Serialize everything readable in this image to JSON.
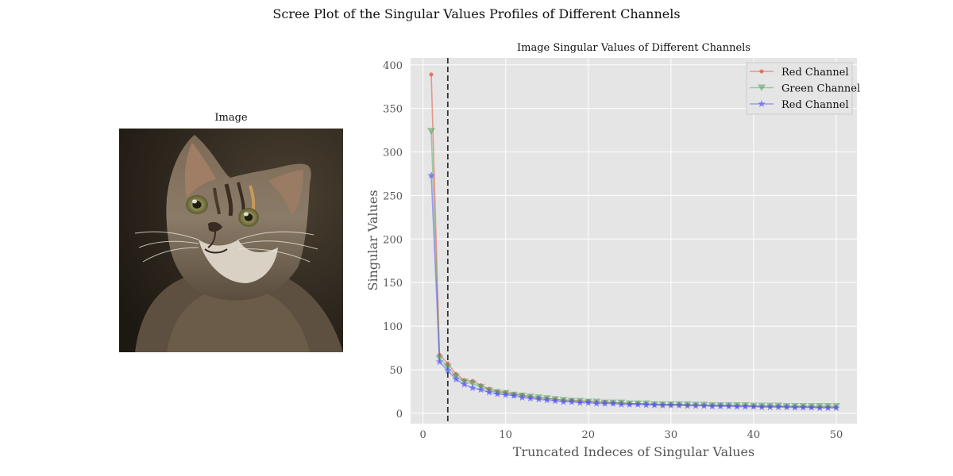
{
  "figure": {
    "title": "Scree Plot of the Singular Values Profiles of Different Channels"
  },
  "image_panel": {
    "title": "Image"
  },
  "chart_data": {
    "type": "line",
    "title": "Image Singular Values of Different Channels",
    "xlabel": "Truncated Indeces of Singular Values",
    "ylabel": "Singular Values",
    "xlim": [
      -1.5,
      52.5
    ],
    "ylim": [
      -12,
      408
    ],
    "xticks": [
      0,
      10,
      20,
      30,
      40,
      50
    ],
    "yticks": [
      0,
      50,
      100,
      150,
      200,
      250,
      300,
      350,
      400
    ],
    "grid": true,
    "legend_position": "top-right",
    "vline_x": 3,
    "x": [
      1,
      2,
      3,
      4,
      5,
      6,
      7,
      8,
      9,
      10,
      11,
      12,
      13,
      14,
      15,
      16,
      17,
      18,
      19,
      20,
      21,
      22,
      23,
      24,
      25,
      26,
      27,
      28,
      29,
      30,
      31,
      32,
      33,
      34,
      35,
      36,
      37,
      38,
      39,
      40,
      41,
      42,
      43,
      44,
      45,
      46,
      47,
      48,
      49,
      50
    ],
    "series": [
      {
        "name": "Red Channel",
        "color": "#e24a33",
        "marker": "dot",
        "values": [
          389,
          67,
          57,
          45,
          38,
          37,
          32,
          28,
          25,
          24,
          22,
          21,
          19,
          18,
          17,
          16,
          15,
          15,
          14,
          14,
          13,
          13,
          12,
          12,
          11,
          11,
          11,
          10,
          10,
          10,
          10,
          9.5,
          9.5,
          9,
          9,
          9,
          8.5,
          8.5,
          8.5,
          8,
          8,
          8,
          8,
          7.5,
          7.5,
          7.5,
          7,
          7,
          7,
          7
        ]
      },
      {
        "name": "Green Channel",
        "color": "#55a868",
        "marker": "triangle-down",
        "values": [
          324,
          63,
          53,
          42,
          36,
          34,
          30,
          26,
          24,
          23,
          21,
          20,
          19,
          18,
          17,
          16,
          15,
          14,
          14,
          13,
          13,
          12,
          12,
          12,
          11,
          11,
          11,
          10,
          10,
          10,
          10,
          10,
          9.5,
          9.5,
          9,
          9,
          9,
          9,
          9,
          8.5,
          8.5,
          8.5,
          8.5,
          8,
          8,
          8,
          8,
          8,
          8,
          8
        ]
      },
      {
        "name": "Red Channel",
        "color": "#4f4fff",
        "marker": "star",
        "values": [
          273,
          59,
          49,
          39,
          33,
          29,
          27,
          24,
          22,
          21,
          20,
          18,
          17,
          16,
          15,
          14,
          13,
          13,
          12,
          12,
          11,
          11,
          11,
          10,
          10,
          10,
          9.5,
          9.5,
          9,
          9,
          9,
          8.5,
          8.5,
          8.5,
          8,
          8,
          8,
          7.5,
          7.5,
          7.5,
          7,
          7,
          7,
          7,
          6.5,
          6.5,
          6.5,
          6,
          6,
          6
        ]
      }
    ]
  }
}
